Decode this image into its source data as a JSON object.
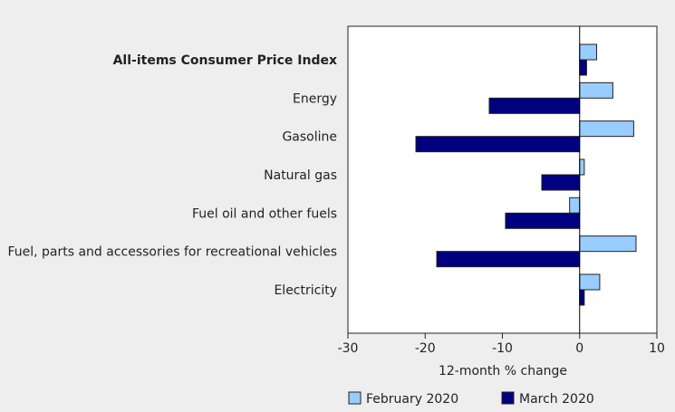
{
  "chart_data": {
    "type": "bar",
    "orientation": "horizontal",
    "categories": [
      "All-items Consumer Price Index",
      "Energy",
      "Gasoline",
      "Natural gas",
      "Fuel oil and other fuels",
      "Fuel, parts and accessories for recreational vehicles",
      "Electricity"
    ],
    "bold_categories": [
      "All-items Consumer Price Index"
    ],
    "series": [
      {
        "name": "February 2020",
        "color": "#99ccff",
        "values": [
          2.2,
          4.3,
          7.0,
          0.6,
          -1.3,
          7.3,
          2.6
        ]
      },
      {
        "name": "March 2020",
        "color": "#000080",
        "values": [
          0.9,
          -11.7,
          -21.2,
          -4.9,
          -9.6,
          -18.5,
          0.6
        ]
      }
    ],
    "xlabel": "12-month % change",
    "xlim": [
      -30,
      10
    ],
    "xticks": [
      -30,
      -20,
      -10,
      0,
      10
    ],
    "xtick_labels": [
      "-30",
      "-20",
      "-10",
      "0",
      "10"
    ],
    "grid": false,
    "legend_position": "bottom"
  }
}
